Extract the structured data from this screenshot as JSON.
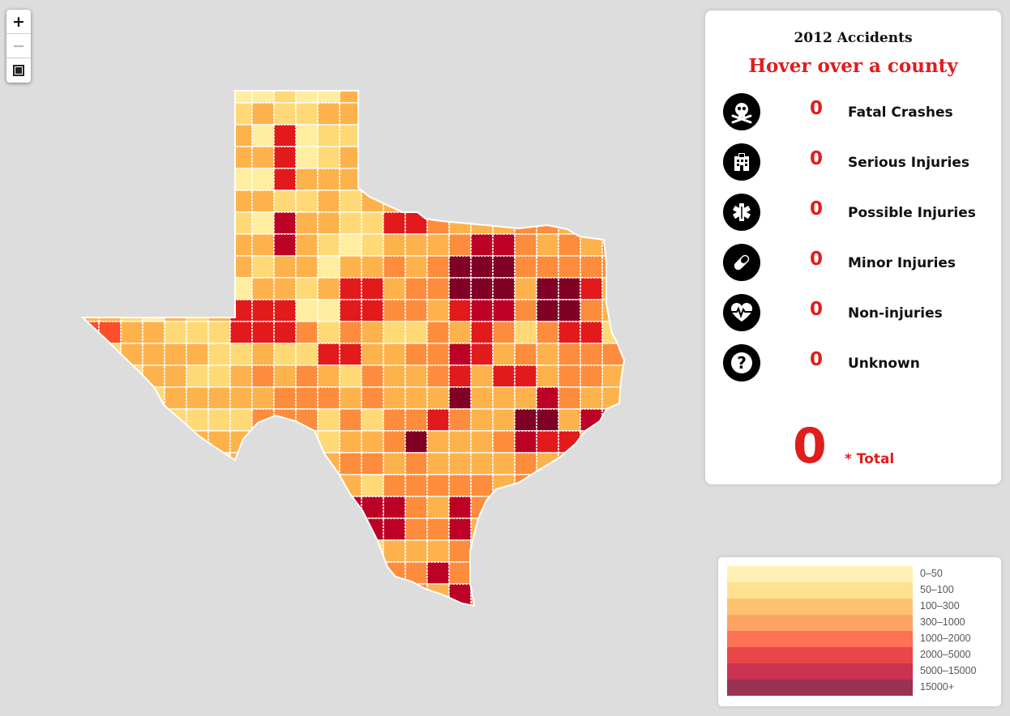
{
  "panel": {
    "title": "2012 Accidents",
    "subtitle": "Hover over a county",
    "stats": [
      {
        "icon": "skull-crossbones-icon",
        "value": "0",
        "label": "Fatal Crashes"
      },
      {
        "icon": "hospital-icon",
        "value": "0",
        "label": "Serious Injuries"
      },
      {
        "icon": "star-of-life-icon",
        "value": "0",
        "label": "Possible Injuries"
      },
      {
        "icon": "pill-icon",
        "value": "0",
        "label": "Minor Injuries"
      },
      {
        "icon": "heartbeat-icon",
        "value": "0",
        "label": "Non-injuries"
      },
      {
        "icon": "question-mark-icon",
        "value": "0",
        "label": "Unknown"
      }
    ],
    "total_value": "0",
    "total_label": "* Total"
  },
  "zoom": {
    "zoom_in": "+",
    "zoom_out": "−"
  },
  "legend": [
    {
      "label": "0–50",
      "color": "#ffeda0"
    },
    {
      "label": "50–100",
      "color": "#fed976"
    },
    {
      "label": "100–300",
      "color": "#feb24c"
    },
    {
      "label": "300–1000",
      "color": "#fd8d3c"
    },
    {
      "label": "1000–2000",
      "color": "#fc4e2a"
    },
    {
      "label": "2000–5000",
      "color": "#e31a1c"
    },
    {
      "label": "5000–15000",
      "color": "#bd0026"
    },
    {
      "label": "15000+",
      "color": "#800026"
    }
  ],
  "colors": {
    "accent": "#e01d1d",
    "background": "#dddddd",
    "county_border": "#ffffff"
  }
}
